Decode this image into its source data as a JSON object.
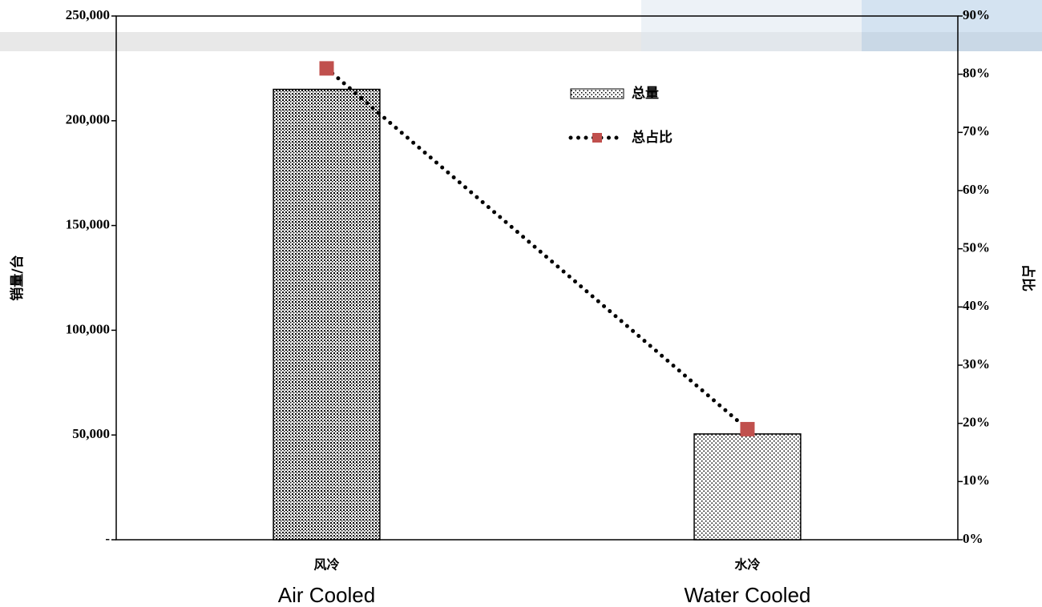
{
  "chart_data": {
    "type": "bar-line",
    "categories": [
      "风冷",
      "水冷"
    ],
    "category_labels_en": [
      "Air Cooled",
      "Water Cooled"
    ],
    "y_label": "销量/台",
    "y2_label": "占比",
    "series": [
      {
        "name": "总量",
        "type": "bar",
        "color": "#000000",
        "values": [
          215000,
          50500
        ]
      },
      {
        "name": "总占比",
        "type": "line",
        "axis": "y2",
        "color": "#000000",
        "marker_color": "#c0504d",
        "values": [
          81,
          19
        ]
      }
    ],
    "ylim": [
      0,
      250000
    ],
    "yticks": [
      {
        "value": 0,
        "label": "-"
      },
      {
        "value": 50000,
        "label": "50,000"
      },
      {
        "value": 100000,
        "label": "100,000"
      },
      {
        "value": 150000,
        "label": "150,000"
      },
      {
        "value": 200000,
        "label": "200,000"
      },
      {
        "value": 250000,
        "label": "250,000"
      }
    ],
    "y2lim": [
      0,
      90
    ],
    "y2ticks": [
      {
        "value": 0,
        "label": "0%"
      },
      {
        "value": 10,
        "label": "10%"
      },
      {
        "value": 20,
        "label": "20%"
      },
      {
        "value": 30,
        "label": "30%"
      },
      {
        "value": 40,
        "label": "40%"
      },
      {
        "value": 50,
        "label": "50%"
      },
      {
        "value": 60,
        "label": "60%"
      },
      {
        "value": 70,
        "label": "70%"
      },
      {
        "value": 80,
        "label": "80%"
      },
      {
        "value": 90,
        "label": "90%"
      }
    ],
    "grid": false,
    "legend": "top-right"
  }
}
